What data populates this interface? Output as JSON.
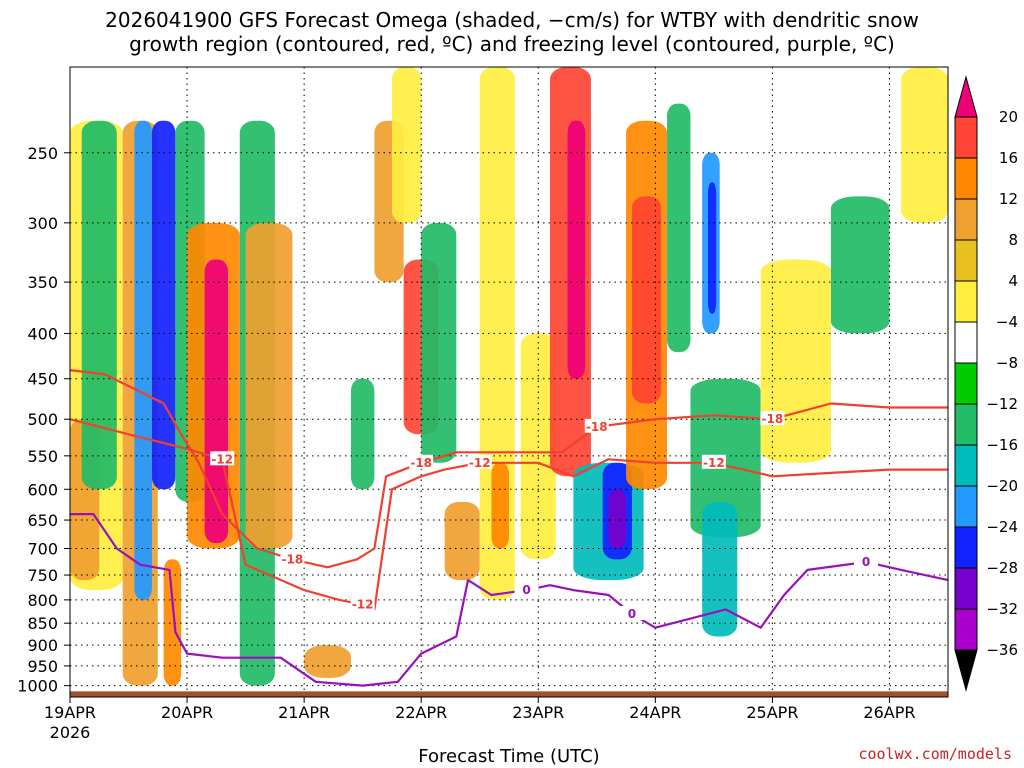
{
  "chart_data": {
    "type": "heatmap",
    "title_line1": "2026041900 GFS Forecast Omega (shaded, −cm/s) for WTBY with dendritic snow",
    "title_line2": "growth region (contoured, red, ºC) and freezing level (contoured, purple, ºC)",
    "xlabel": "Forecast Time (UTC)",
    "x_ticks": [
      "19APR",
      "20APR",
      "21APR",
      "22APR",
      "23APR",
      "24APR",
      "25APR",
      "26APR"
    ],
    "x_year": "2026",
    "x_range_days": [
      0,
      7.5
    ],
    "y_ticks": [
      "250",
      "300",
      "350",
      "400",
      "450",
      "500",
      "550",
      "600",
      "650",
      "700",
      "750",
      "800",
      "850",
      "900",
      "950",
      "1000"
    ],
    "y_range_hpa": [
      1030,
      200
    ],
    "colorbar_ticks": [
      "20",
      "16",
      "12",
      "8",
      "4",
      "−4",
      "−8",
      "−12",
      "−16",
      "−20",
      "−24",
      "−28",
      "−32",
      "−36"
    ],
    "colorbar_colors": [
      "#ee0077",
      "#ff4433",
      "#ff8800",
      "#f0a030",
      "#e8c020",
      "#ffee40",
      "#ffffff",
      "#00cc00",
      "#22bb66",
      "#00bbbb",
      "#2299ff",
      "#1122ff",
      "#7700cc",
      "#aa00cc",
      "#aaaaaa",
      "#000000"
    ],
    "contour_labels_red": [
      "-12",
      "-18",
      "-18",
      "-12",
      "-12",
      "-18",
      "-18",
      "-12"
    ],
    "contour_labels_purple": [
      "0",
      "0",
      "0"
    ],
    "colors": {
      "dgz_contour": "#f04030",
      "freezing_contour": "#9911bb",
      "terrain": "#a0522d",
      "grid": "#000000"
    },
    "omega_features": [
      {
        "t": [
          0.0,
          0.45
        ],
        "p": [
          230,
          780
        ],
        "v": 4
      },
      {
        "t": [
          0.0,
          0.25
        ],
        "p": [
          500,
          760
        ],
        "v": 8
      },
      {
        "t": [
          0.1,
          0.4
        ],
        "p": [
          230,
          600
        ],
        "v": -8
      },
      {
        "t": [
          0.45,
          0.75
        ],
        "p": [
          230,
          1000
        ],
        "v": 8
      },
      {
        "t": [
          0.55,
          0.7
        ],
        "p": [
          230,
          800
        ],
        "v": -16
      },
      {
        "t": [
          0.7,
          0.9
        ],
        "p": [
          230,
          600
        ],
        "v": -20
      },
      {
        "t": [
          0.8,
          0.95
        ],
        "p": [
          720,
          1000
        ],
        "v": 12
      },
      {
        "t": [
          0.9,
          1.15
        ],
        "p": [
          230,
          620
        ],
        "v": -8
      },
      {
        "t": [
          1.0,
          1.45
        ],
        "p": [
          300,
          700
        ],
        "v": 12
      },
      {
        "t": [
          1.15,
          1.35
        ],
        "p": [
          330,
          690
        ],
        "v": 20
      },
      {
        "t": [
          1.45,
          1.75
        ],
        "p": [
          230,
          1000
        ],
        "v": -8
      },
      {
        "t": [
          1.5,
          1.9
        ],
        "p": [
          300,
          700
        ],
        "v": 8
      },
      {
        "t": [
          2.0,
          2.4
        ],
        "p": [
          900,
          980
        ],
        "v": 8
      },
      {
        "t": [
          2.4,
          2.6
        ],
        "p": [
          450,
          600
        ],
        "v": -8
      },
      {
        "t": [
          2.6,
          2.85
        ],
        "p": [
          230,
          350
        ],
        "v": 8
      },
      {
        "t": [
          2.75,
          3.0
        ],
        "p": [
          200,
          300
        ],
        "v": 4
      },
      {
        "t": [
          2.85,
          3.15
        ],
        "p": [
          330,
          520
        ],
        "v": 16
      },
      {
        "t": [
          3.0,
          3.3
        ],
        "p": [
          300,
          560
        ],
        "v": -8
      },
      {
        "t": [
          3.2,
          3.5
        ],
        "p": [
          620,
          760
        ],
        "v": 8
      },
      {
        "t": [
          3.5,
          3.8
        ],
        "p": [
          200,
          800
        ],
        "v": 4
      },
      {
        "t": [
          3.6,
          3.75
        ],
        "p": [
          560,
          700
        ],
        "v": 12
      },
      {
        "t": [
          3.85,
          4.15
        ],
        "p": [
          400,
          720
        ],
        "v": 4
      },
      {
        "t": [
          4.1,
          4.45
        ],
        "p": [
          200,
          580
        ],
        "v": 16
      },
      {
        "t": [
          4.25,
          4.4
        ],
        "p": [
          230,
          450
        ],
        "v": 20
      },
      {
        "t": [
          4.3,
          4.9
        ],
        "p": [
          560,
          760
        ],
        "v": -12
      },
      {
        "t": [
          4.55,
          4.8
        ],
        "p": [
          560,
          720
        ],
        "v": -20
      },
      {
        "t": [
          4.6,
          4.75
        ],
        "p": [
          600,
          700
        ],
        "v": -24
      },
      {
        "t": [
          4.75,
          5.1
        ],
        "p": [
          230,
          600
        ],
        "v": 12
      },
      {
        "t": [
          4.8,
          5.05
        ],
        "p": [
          280,
          480
        ],
        "v": 16
      },
      {
        "t": [
          5.1,
          5.3
        ],
        "p": [
          220,
          420
        ],
        "v": -8
      },
      {
        "t": [
          5.4,
          5.55
        ],
        "p": [
          250,
          400
        ],
        "v": -16
      },
      {
        "t": [
          5.45,
          5.52
        ],
        "p": [
          270,
          380
        ],
        "v": -20
      },
      {
        "t": [
          5.3,
          5.9
        ],
        "p": [
          450,
          680
        ],
        "v": -8
      },
      {
        "t": [
          5.4,
          5.7
        ],
        "p": [
          620,
          880
        ],
        "v": -12
      },
      {
        "t": [
          5.9,
          6.5
        ],
        "p": [
          330,
          560
        ],
        "v": 4
      },
      {
        "t": [
          6.5,
          7.0
        ],
        "p": [
          280,
          400
        ],
        "v": -8
      },
      {
        "t": [
          7.1,
          7.5
        ],
        "p": [
          200,
          300
        ],
        "v": 4
      }
    ],
    "dgz_minus12_contour": [
      [
        0,
        500
      ],
      [
        0.5,
        520
      ],
      [
        1.0,
        540
      ],
      [
        1.3,
        555
      ],
      [
        1.5,
        730
      ],
      [
        2.0,
        780
      ],
      [
        2.3,
        800
      ],
      [
        2.5,
        810
      ],
      [
        2.6,
        820
      ],
      [
        2.75,
        600
      ],
      [
        3.0,
        580
      ],
      [
        3.2,
        570
      ],
      [
        3.5,
        560
      ],
      [
        4.0,
        560
      ],
      [
        4.3,
        580
      ],
      [
        4.6,
        555
      ],
      [
        5.0,
        560
      ],
      [
        5.5,
        560
      ],
      [
        6.0,
        580
      ],
      [
        6.5,
        575
      ],
      [
        7.0,
        570
      ],
      [
        7.5,
        570
      ]
    ],
    "dgz_minus18_contour": [
      [
        0,
        440
      ],
      [
        0.3,
        445
      ],
      [
        0.8,
        480
      ],
      [
        0.95,
        520
      ],
      [
        1.1,
        560
      ],
      [
        1.3,
        640
      ],
      [
        1.6,
        700
      ],
      [
        1.9,
        720
      ],
      [
        2.2,
        735
      ],
      [
        2.45,
        720
      ],
      [
        2.6,
        700
      ],
      [
        2.7,
        580
      ],
      [
        3.0,
        560
      ],
      [
        3.3,
        545
      ],
      [
        3.8,
        545
      ],
      [
        4.2,
        545
      ],
      [
        4.5,
        510
      ],
      [
        5.0,
        500
      ],
      [
        5.5,
        495
      ],
      [
        6.0,
        500
      ],
      [
        6.5,
        480
      ],
      [
        7.0,
        485
      ],
      [
        7.5,
        485
      ]
    ],
    "freezing_0C_contour": [
      [
        0,
        640
      ],
      [
        0.2,
        640
      ],
      [
        0.4,
        700
      ],
      [
        0.6,
        730
      ],
      [
        0.85,
        740
      ],
      [
        0.9,
        870
      ],
      [
        1.0,
        920
      ],
      [
        1.3,
        930
      ],
      [
        1.8,
        930
      ],
      [
        2.1,
        990
      ],
      [
        2.5,
        1000
      ],
      [
        2.8,
        990
      ],
      [
        3.0,
        920
      ],
      [
        3.3,
        880
      ],
      [
        3.4,
        760
      ],
      [
        3.6,
        790
      ],
      [
        3.9,
        780
      ],
      [
        4.1,
        770
      ],
      [
        4.3,
        780
      ],
      [
        4.6,
        790
      ],
      [
        4.8,
        830
      ],
      [
        5.0,
        860
      ],
      [
        5.3,
        840
      ],
      [
        5.6,
        820
      ],
      [
        5.9,
        860
      ],
      [
        6.1,
        790
      ],
      [
        6.3,
        740
      ],
      [
        6.8,
        725
      ],
      [
        7.1,
        740
      ],
      [
        7.5,
        760
      ]
    ],
    "ground_level_hpa": 1015
  }
}
